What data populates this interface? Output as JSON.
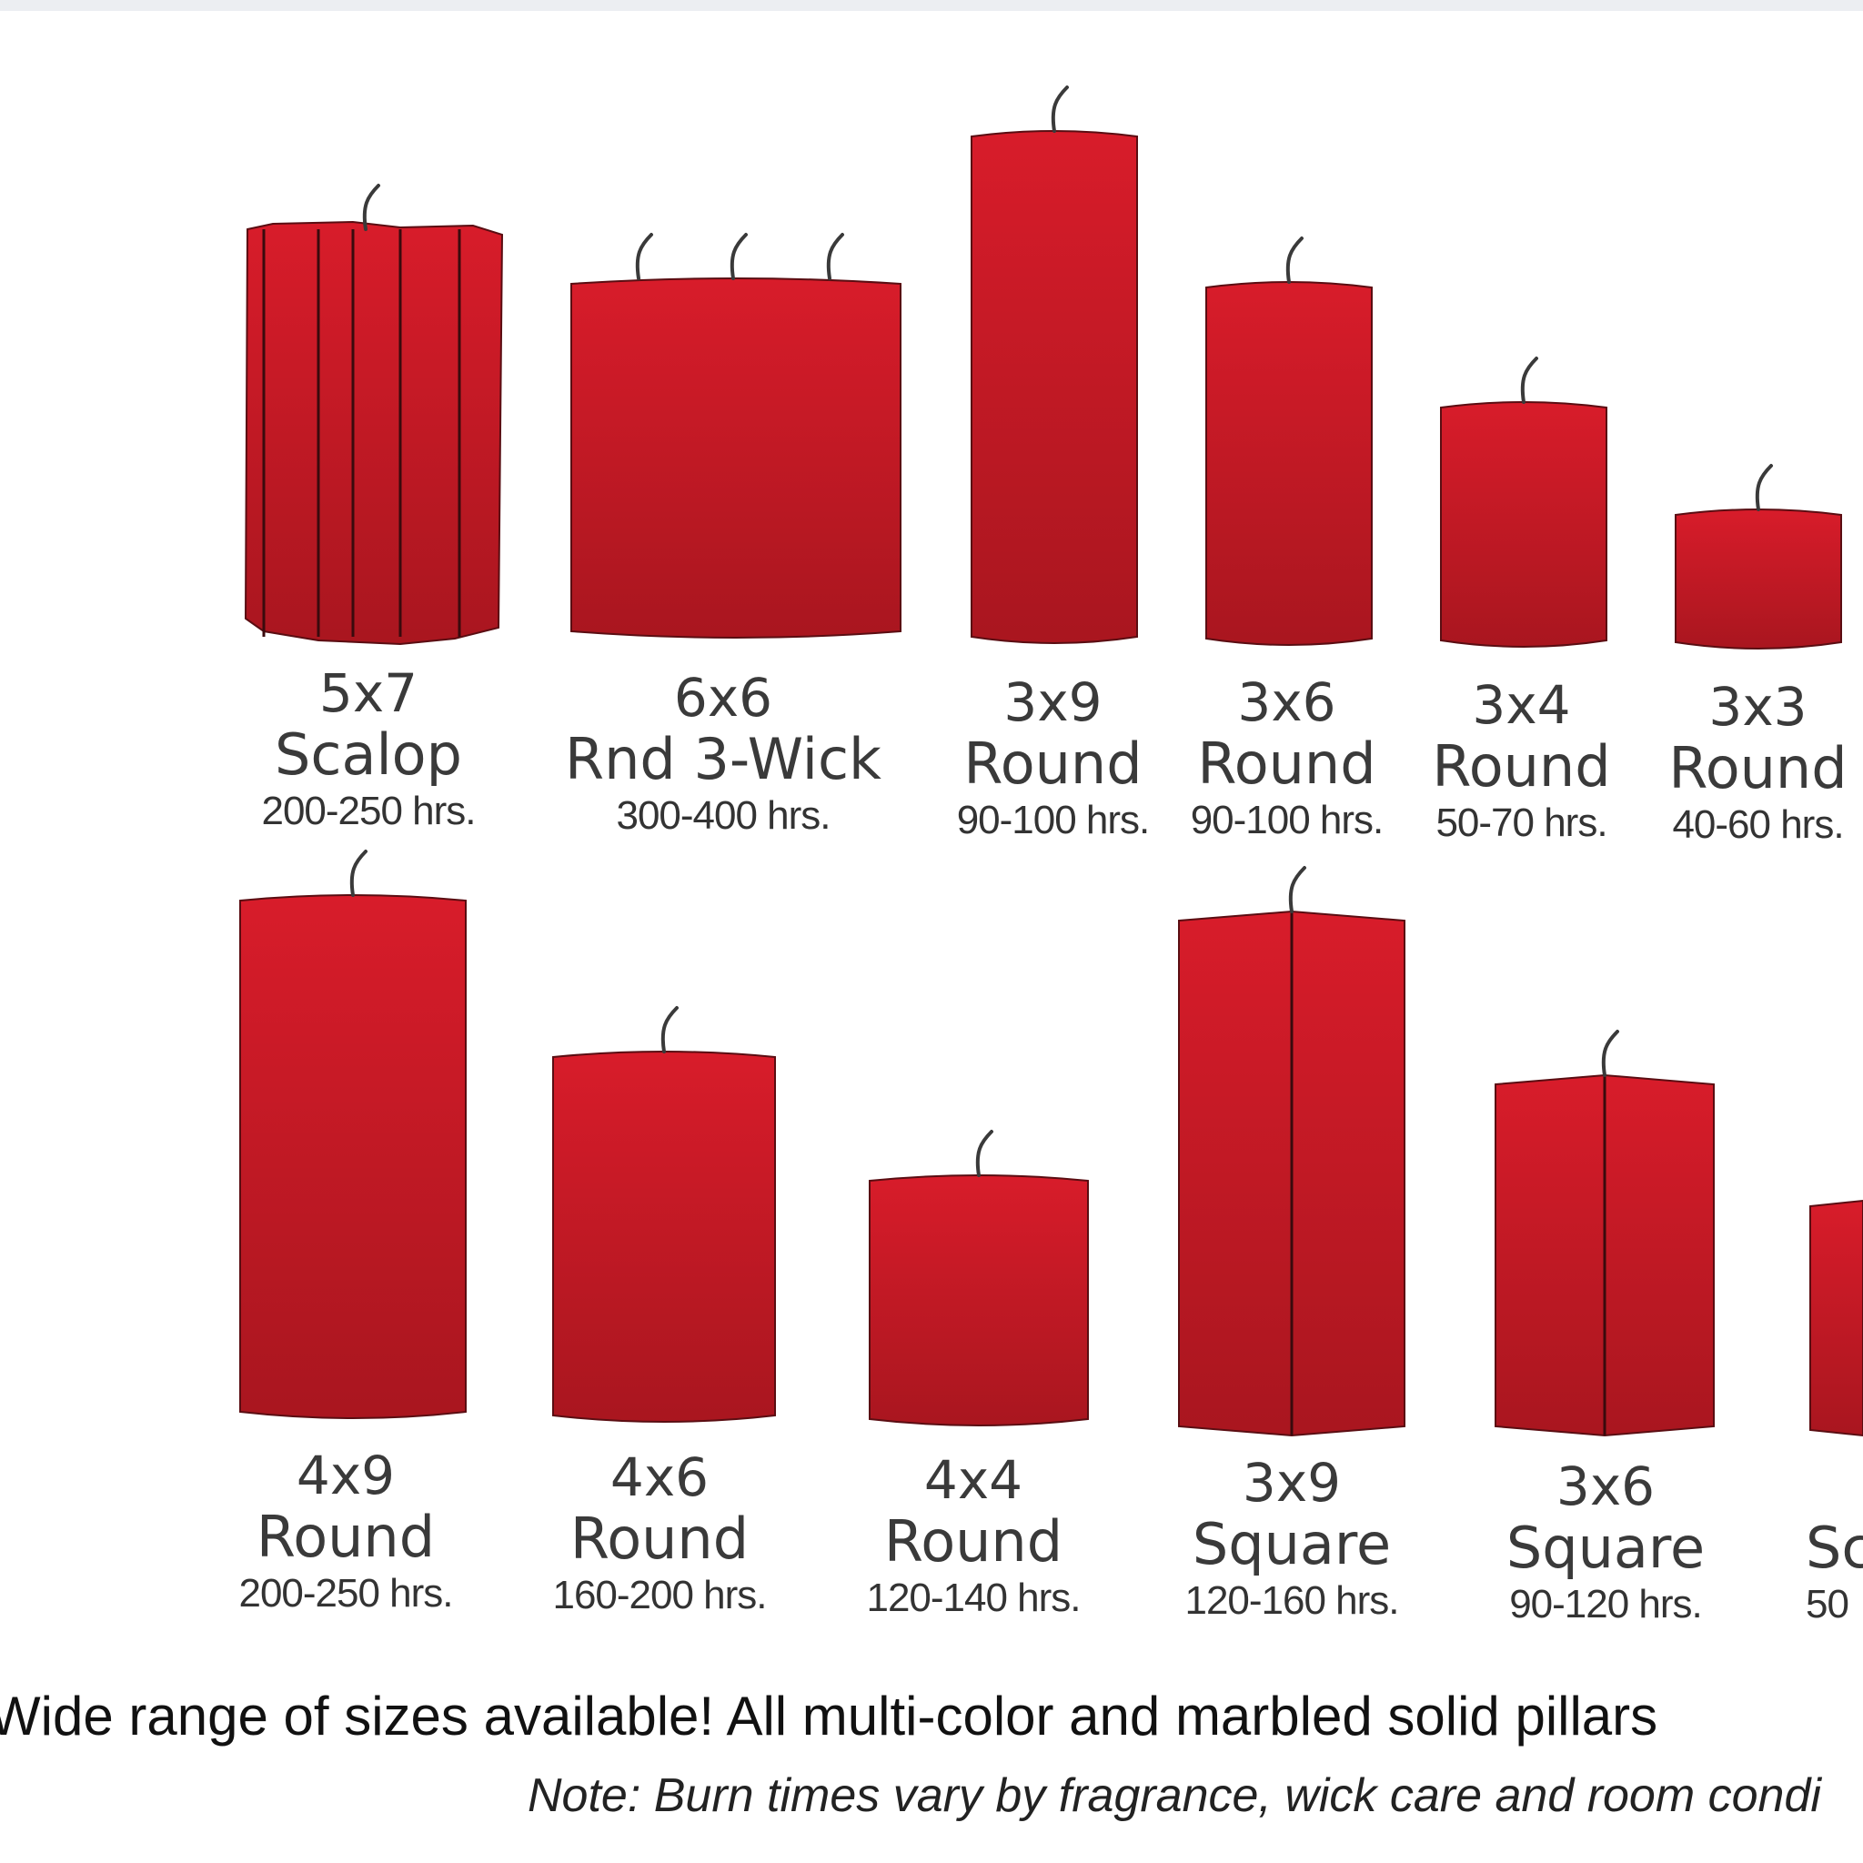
{
  "colors": {
    "candle_top": "#d81c2a",
    "candle_bottom": "#a9161f",
    "wick": "#3a3a3a"
  },
  "row1": [
    {
      "size": "5x7",
      "shape": "Scalop",
      "hours": "200-250 hrs."
    },
    {
      "size": "6x6",
      "shape": "Rnd 3-Wick",
      "hours": "300-400 hrs."
    },
    {
      "size": "3x9",
      "shape": "Round",
      "hours": "90-100 hrs."
    },
    {
      "size": "3x6",
      "shape": "Round",
      "hours": "90-100 hrs."
    },
    {
      "size": "3x4",
      "shape": "Round",
      "hours": "50-70 hrs."
    },
    {
      "size": "3x3",
      "shape": "Round",
      "hours": "40-60 hrs."
    }
  ],
  "row2": [
    {
      "size": "4x9",
      "shape": "Round",
      "hours": "200-250 hrs."
    },
    {
      "size": "4x6",
      "shape": "Round",
      "hours": "160-200 hrs."
    },
    {
      "size": "4x4",
      "shape": "Round",
      "hours": "120-140 hrs."
    },
    {
      "size": "3x9",
      "shape": "Square",
      "hours": "120-160 hrs."
    },
    {
      "size": "3x6",
      "shape": "Square",
      "hours": "90-120 hrs."
    },
    {
      "size": "",
      "shape": "Sc",
      "hours": "50"
    }
  ],
  "footer": {
    "main": "Wide range of sizes available! All multi-color and marbled solid pillars",
    "note": "Note: Burn times vary by fragrance, wick care and room condi"
  }
}
